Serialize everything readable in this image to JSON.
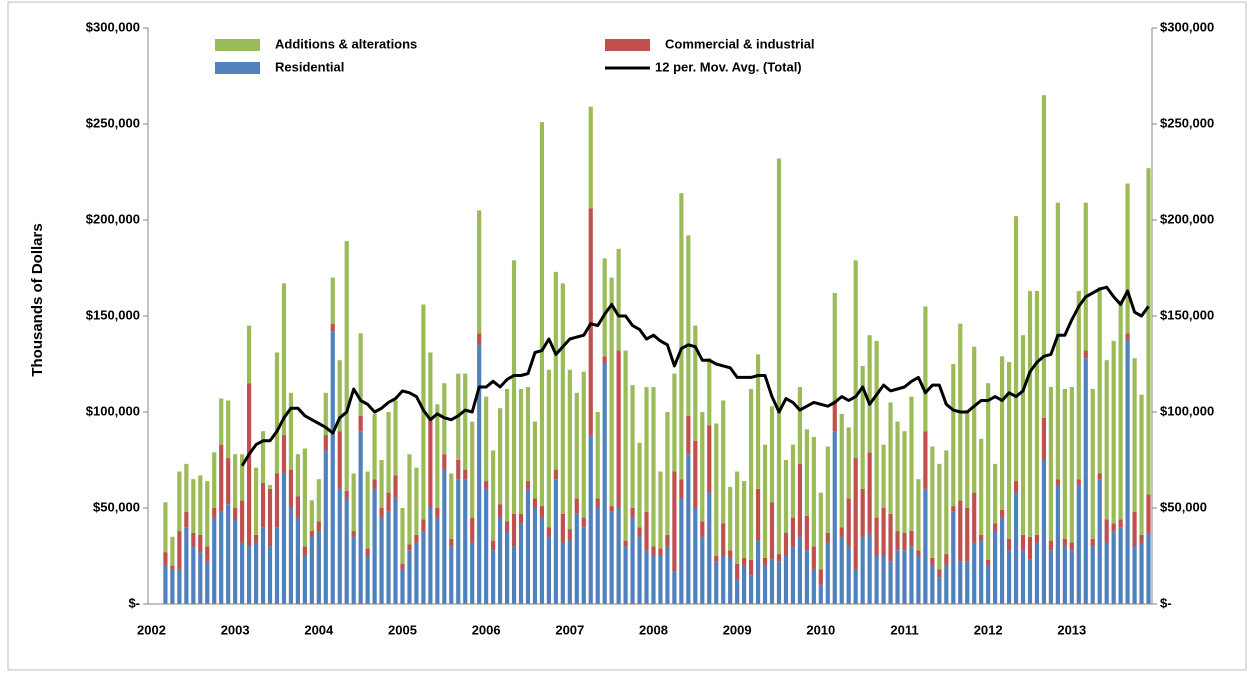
{
  "chart_data": {
    "type": "bar",
    "y_label": "Thousands of Dollars",
    "categories": [
      "2002",
      null,
      null,
      null,
      null,
      null,
      null,
      null,
      null,
      null,
      null,
      null,
      "2003",
      null,
      null,
      null,
      null,
      null,
      null,
      null,
      null,
      null,
      null,
      null,
      "2004",
      null,
      null,
      null,
      null,
      null,
      null,
      null,
      null,
      null,
      null,
      null,
      "2005",
      null,
      null,
      null,
      null,
      null,
      null,
      null,
      null,
      null,
      null,
      null,
      "2006",
      null,
      null,
      null,
      null,
      null,
      null,
      null,
      null,
      null,
      null,
      null,
      "2007",
      null,
      null,
      null,
      null,
      null,
      null,
      null,
      null,
      null,
      null,
      null,
      "2008",
      null,
      null,
      null,
      null,
      null,
      null,
      null,
      null,
      null,
      null,
      null,
      "2009",
      null,
      null,
      null,
      null,
      null,
      null,
      null,
      null,
      null,
      null,
      null,
      "2010",
      null,
      null,
      null,
      null,
      null,
      null,
      null,
      null,
      null,
      null,
      null,
      "2011",
      null,
      null,
      null,
      null,
      null,
      null,
      null,
      null,
      null,
      null,
      null,
      "2012",
      null,
      null,
      null,
      null,
      null,
      null,
      null,
      null,
      null,
      null,
      null,
      "2013",
      null,
      null,
      null,
      null,
      null,
      null,
      null,
      null,
      null,
      null,
      null
    ],
    "series": [
      {
        "name": "Additions & alterations",
        "color": "#9bbb59",
        "values": [
          null,
          null,
          26000,
          15000,
          31000,
          25000,
          28000,
          31000,
          34000,
          29000,
          24000,
          30000,
          28000,
          24000,
          30000,
          35000,
          27000,
          2000,
          63000,
          79000,
          40000,
          22000,
          51000,
          16000,
          22000,
          22000,
          24000,
          37000,
          130000,
          30000,
          43000,
          40000,
          34000,
          25000,
          42000,
          39000,
          29000,
          47000,
          35000,
          112000,
          34000,
          54000,
          37000,
          34000,
          45000,
          50000,
          50000,
          64000,
          44000,
          47000,
          50000,
          69000,
          132000,
          65000,
          49000,
          40000,
          200000,
          82000,
          103000,
          120000,
          83000,
          55000,
          76000,
          53000,
          45000,
          51000,
          119000,
          53000,
          99000,
          64000,
          44000,
          65000,
          83000,
          40000,
          64000,
          51000,
          149000,
          94000,
          60000,
          57000,
          35000,
          69000,
          64000,
          33000,
          48000,
          40000,
          89000,
          70000,
          59000,
          50000,
          206000,
          38000,
          38000,
          40000,
          45000,
          57000,
          40000,
          45000,
          56000,
          59000,
          37000,
          103000,
          64000,
          61000,
          92000,
          33000,
          58000,
          57000,
          53000,
          70000,
          37000,
          65000,
          58000,
          55000,
          54000,
          74000,
          92000,
          51000,
          76000,
          50000,
          92000,
          31000,
          80000,
          92000,
          138000,
          104000,
          128000,
          127000,
          168000,
          80000,
          144000,
          78000,
          81000,
          98000,
          77000,
          78000,
          97000,
          83000,
          95000,
          114000,
          78000,
          80000,
          73000,
          170000
        ]
      },
      {
        "name": "Commercial & industrial",
        "color": "#c0504d",
        "values": [
          null,
          null,
          7000,
          2000,
          20000,
          8000,
          7000,
          9000,
          8000,
          5000,
          35000,
          24000,
          6000,
          22000,
          85000,
          4000,
          23000,
          30000,
          28000,
          20000,
          20000,
          11000,
          5000,
          3000,
          5000,
          8000,
          4000,
          30000,
          4000,
          3000,
          8000,
          4000,
          5000,
          5000,
          10000,
          12000,
          3000,
          3000,
          4000,
          6000,
          47000,
          5000,
          8000,
          4000,
          10000,
          5000,
          13000,
          6000,
          4000,
          5000,
          7000,
          5000,
          17000,
          5000,
          4000,
          5000,
          6000,
          5000,
          5000,
          15000,
          6000,
          8000,
          5000,
          118000,
          5000,
          4000,
          3000,
          82000,
          3000,
          5000,
          5000,
          20000,
          5000,
          4000,
          6000,
          52000,
          10000,
          20000,
          35000,
          8000,
          35000,
          3000,
          17000,
          4000,
          8000,
          4000,
          8000,
          27000,
          4000,
          30000,
          4000,
          12000,
          15000,
          38000,
          18000,
          12000,
          8000,
          5000,
          16000,
          5000,
          25000,
          58000,
          25000,
          42000,
          20000,
          25000,
          25000,
          10000,
          9000,
          8000,
          3000,
          30000,
          4000,
          4000,
          6000,
          3000,
          32000,
          28000,
          26000,
          3000,
          3000,
          4000,
          4000,
          6000,
          6000,
          8000,
          12000,
          4000,
          22000,
          5000,
          3000,
          4000,
          4000,
          3000,
          4000,
          4000,
          3000,
          12000,
          4000,
          4000,
          3000,
          18000,
          4000,
          20000
        ]
      },
      {
        "name": "Residential",
        "color": "#4f81bd",
        "values": [
          null,
          null,
          20000,
          18000,
          18000,
          40000,
          30000,
          27000,
          22000,
          45000,
          48000,
          52000,
          44000,
          32000,
          30000,
          32000,
          40000,
          30000,
          40000,
          68000,
          50000,
          45000,
          25000,
          35000,
          38000,
          80000,
          142000,
          60000,
          55000,
          35000,
          90000,
          25000,
          60000,
          45000,
          48000,
          55000,
          18000,
          28000,
          32000,
          38000,
          50000,
          45000,
          70000,
          30000,
          65000,
          65000,
          32000,
          135000,
          60000,
          28000,
          45000,
          38000,
          30000,
          42000,
          60000,
          50000,
          45000,
          35000,
          65000,
          32000,
          33000,
          47000,
          40000,
          88000,
          50000,
          125000,
          48000,
          50000,
          30000,
          45000,
          35000,
          28000,
          25000,
          25000,
          30000,
          17000,
          55000,
          78000,
          50000,
          35000,
          58000,
          22000,
          25000,
          24000,
          13000,
          20000,
          15000,
          33000,
          20000,
          23000,
          22000,
          25000,
          30000,
          35000,
          28000,
          18000,
          10000,
          32000,
          90000,
          35000,
          30000,
          18000,
          35000,
          37000,
          25000,
          25000,
          22000,
          28000,
          28000,
          30000,
          25000,
          60000,
          20000,
          14000,
          20000,
          48000,
          22000,
          22000,
          32000,
          33000,
          20000,
          38000,
          45000,
          28000,
          58000,
          28000,
          23000,
          32000,
          75000,
          28000,
          62000,
          30000,
          28000,
          62000,
          128000,
          30000,
          65000,
          32000,
          38000,
          40000,
          138000,
          30000,
          32000,
          37000
        ]
      },
      {
        "name": "12 per. Mov. Avg. (Total)",
        "color": "#000000",
        "type": "line",
        "values": [
          null,
          null,
          null,
          null,
          null,
          null,
          null,
          null,
          null,
          null,
          null,
          null,
          null,
          72000,
          78000,
          83000,
          85000,
          85000,
          90000,
          97000,
          102000,
          102000,
          98000,
          96000,
          94000,
          92000,
          89000,
          97000,
          100000,
          112000,
          106000,
          104000,
          100000,
          102000,
          105000,
          107000,
          111000,
          110000,
          108000,
          101000,
          96000,
          99000,
          97000,
          96000,
          98000,
          101000,
          100000,
          113000,
          113000,
          116000,
          113000,
          117000,
          119000,
          119000,
          120000,
          131000,
          132000,
          138000,
          130000,
          134000,
          138000,
          139000,
          140000,
          146000,
          145000,
          151000,
          156000,
          150000,
          150000,
          145000,
          143000,
          138000,
          140000,
          137000,
          135000,
          124000,
          133000,
          135000,
          134000,
          127000,
          127000,
          125000,
          124000,
          123000,
          118000,
          118000,
          118000,
          119000,
          119000,
          108000,
          100000,
          107000,
          105000,
          101000,
          103000,
          105000,
          104000,
          103000,
          105000,
          108000,
          106000,
          108000,
          113000,
          104000,
          109000,
          114000,
          111000,
          112000,
          113000,
          116000,
          118000,
          110000,
          114000,
          114000,
          104000,
          101000,
          100000,
          100000,
          103000,
          106000,
          106000,
          108000,
          106000,
          110000,
          108000,
          111000,
          121000,
          126000,
          129000,
          130000,
          140000,
          140000,
          148000,
          155000,
          160000,
          162000,
          164000,
          165000,
          160000,
          156000,
          163000,
          152000,
          150000,
          155000
        ]
      }
    ],
    "ylim": [
      0,
      300000
    ],
    "yticks": [
      {
        "value": 0,
        "label": "$-"
      },
      {
        "value": 50000,
        "label": "$50,000"
      },
      {
        "value": 100000,
        "label": "$100,000"
      },
      {
        "value": 150000,
        "label": "$150,000"
      },
      {
        "value": 200000,
        "label": "$200,000"
      },
      {
        "value": 250000,
        "label": "$250,000"
      },
      {
        "value": 300000,
        "label": "$300,000"
      }
    ],
    "y2lim": [
      0,
      300000
    ],
    "y2ticks": [
      {
        "value": 0,
        "label": "$-"
      },
      {
        "value": 50000,
        "label": "$50,000"
      },
      {
        "value": 100000,
        "label": "$100,000"
      },
      {
        "value": 150000,
        "label": "$150,000"
      },
      {
        "value": 200000,
        "label": "$200,000"
      },
      {
        "value": 250000,
        "label": "$250,000"
      },
      {
        "value": 300000,
        "label": "$300,000"
      }
    ],
    "stacked": true
  }
}
